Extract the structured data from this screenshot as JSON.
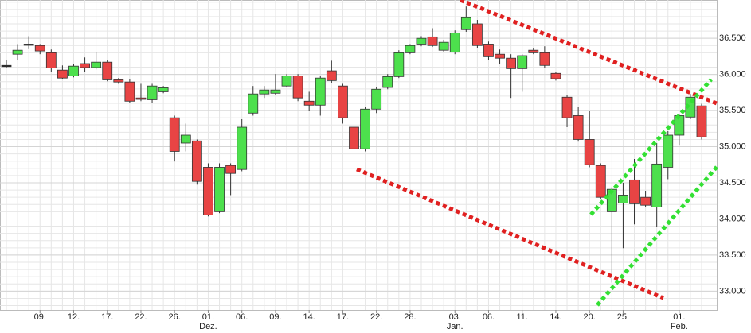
{
  "chart_data": {
    "type": "candlestick",
    "categories": [
      null,
      null,
      null,
      "09.",
      null,
      null,
      "12.",
      null,
      null,
      "17.",
      null,
      null,
      "22.",
      null,
      null,
      "26.",
      null,
      null,
      "01.",
      null,
      null,
      "06.",
      null,
      null,
      "09.",
      null,
      null,
      "14.",
      null,
      null,
      "17.",
      null,
      null,
      "22.",
      null,
      null,
      "28.",
      null,
      null,
      null,
      "03.",
      null,
      null,
      "06.",
      null,
      null,
      "11.",
      null,
      null,
      "14.",
      null,
      null,
      "20.",
      null,
      null,
      "25.",
      null,
      null,
      null,
      null,
      "01.",
      null,
      null
    ],
    "category_sublabels": [
      null,
      null,
      null,
      null,
      null,
      null,
      null,
      null,
      null,
      null,
      null,
      null,
      null,
      null,
      null,
      null,
      null,
      null,
      "Dez.",
      null,
      null,
      null,
      null,
      null,
      null,
      null,
      null,
      null,
      null,
      null,
      null,
      null,
      null,
      null,
      null,
      null,
      null,
      null,
      null,
      null,
      "Jan.",
      null,
      null,
      null,
      null,
      null,
      null,
      null,
      null,
      null,
      null,
      null,
      null,
      null,
      null,
      null,
      null,
      null,
      null,
      null,
      "Feb.",
      null,
      null
    ],
    "series": [
      {
        "open": [
          36125,
          36280,
          36420,
          36400,
          36300,
          36060,
          35980,
          36150,
          36095,
          36170,
          35925,
          35895,
          35675,
          35650,
          35760,
          35400,
          35050,
          35080,
          34715,
          34100,
          34740,
          34685,
          35465,
          35730,
          35740,
          35840,
          35980,
          35630,
          35575,
          36050,
          35840,
          35270,
          34970,
          35520,
          35820,
          35970,
          36300,
          36420,
          36520,
          36335,
          36310,
          36620,
          36700,
          36420,
          36280,
          36225,
          36080,
          36335,
          36300,
          36015,
          35685,
          35430,
          35100,
          34740,
          34100,
          34220,
          34540,
          34300,
          34165,
          34715,
          35160,
          35410,
          35565
        ],
        "high": [
          36200,
          36420,
          36530,
          36420,
          36345,
          36125,
          36150,
          36235,
          36310,
          36200,
          35950,
          35930,
          35870,
          35870,
          35840,
          35430,
          35320,
          35100,
          34770,
          34770,
          34770,
          35380,
          35840,
          35840,
          36005,
          36005,
          36005,
          35760,
          35980,
          36190,
          35870,
          35300,
          35545,
          35820,
          36005,
          36335,
          36420,
          36530,
          36640,
          36480,
          36610,
          36940,
          36755,
          36455,
          36345,
          36280,
          36280,
          36370,
          36390,
          36040,
          35710,
          35545,
          35490,
          34770,
          34440,
          34500,
          34830,
          34390,
          35050,
          35215,
          35455,
          35730,
          35595
        ],
        "low": [
          36090,
          36200,
          36350,
          36280,
          36040,
          35930,
          35960,
          36040,
          36070,
          35905,
          35870,
          35600,
          35630,
          35600,
          35740,
          34795,
          34935,
          34475,
          34035,
          34080,
          34330,
          34660,
          35430,
          35675,
          35710,
          35820,
          35630,
          35490,
          35430,
          35885,
          35320,
          34685,
          34935,
          35465,
          35795,
          35950,
          36280,
          36390,
          36380,
          36310,
          36280,
          36590,
          36370,
          36200,
          36150,
          35675,
          35760,
          36280,
          36095,
          35915,
          35270,
          35070,
          34715,
          34275,
          33120,
          33595,
          33925,
          34165,
          33890,
          34550,
          35015,
          35380,
          35100
        ],
        "close": [
          36125,
          36335,
          36420,
          36325,
          36090,
          35950,
          36115,
          36095,
          36170,
          35925,
          35895,
          35630,
          35655,
          35840,
          35815,
          34935,
          35160,
          34520,
          34055,
          34715,
          34630,
          35270,
          35730,
          35785,
          35785,
          35980,
          35675,
          35575,
          35950,
          35915,
          35400,
          34970,
          35520,
          35795,
          35970,
          36300,
          36400,
          36500,
          36400,
          36445,
          36575,
          36785,
          36400,
          36245,
          36225,
          36080,
          36260,
          36300,
          36125,
          35940,
          35400,
          35100,
          34750,
          34300,
          34410,
          34330,
          34210,
          34190,
          34760,
          35160,
          35430,
          35685,
          35135
        ]
      }
    ],
    "up_color": "#4de04d",
    "down_color": "#e84444",
    "neutral_color": "#222222",
    "ylim": [
      32740,
      37030
    ],
    "yticks": [
      {
        "value": 33000,
        "label": "33.000"
      },
      {
        "value": 33500,
        "label": "33.500"
      },
      {
        "value": 34000,
        "label": "34.000"
      },
      {
        "value": 34500,
        "label": "34.500"
      },
      {
        "value": 35000,
        "label": "35.000"
      },
      {
        "value": 35500,
        "label": "35.500"
      },
      {
        "value": 36000,
        "label": "36.000"
      },
      {
        "value": 36500,
        "label": "36.500"
      }
    ],
    "grid": true,
    "grid_minor_step": 100
  }
}
